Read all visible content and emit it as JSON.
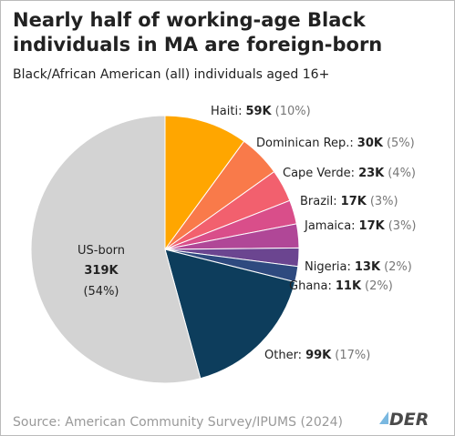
{
  "chart_data": {
    "type": "pie",
    "title": [
      "Nearly half of working-age Black",
      "individuals in MA are foreign-born"
    ],
    "subtitle": "Black/African American (all) individuals aged 16+",
    "categories": [
      "Haiti:",
      "Dominican Rep.:",
      "Cape Verde:",
      "Brazil:",
      "Jamaica:",
      "Nigeria:",
      "Ghana:",
      "Other:",
      "US-born"
    ],
    "values": [
      59000,
      30000,
      23000,
      17000,
      17000,
      13000,
      11000,
      99000,
      319000
    ],
    "value_labels": [
      "59K",
      "30K",
      "23K",
      "17K",
      "17K",
      "13K",
      "11K",
      "99K",
      "319K"
    ],
    "percents": [
      10,
      5,
      4,
      3,
      3,
      2,
      2,
      17,
      54
    ],
    "percent_labels": [
      "(10%)",
      "(5%)",
      "(4%)",
      "(3%)",
      "(3%)",
      "(2%)",
      "(2%)",
      "(17%)",
      "(54%)"
    ],
    "colors": [
      "#ffa600",
      "#f97a4a",
      "#f2606e",
      "#d94e8a",
      "#b04797",
      "#6b4590",
      "#2e4a7f",
      "#0d3d5c",
      "#d3d3d3"
    ],
    "source": "Source: American Community Survey/IPUMS (2024)",
    "logo": "DER"
  }
}
